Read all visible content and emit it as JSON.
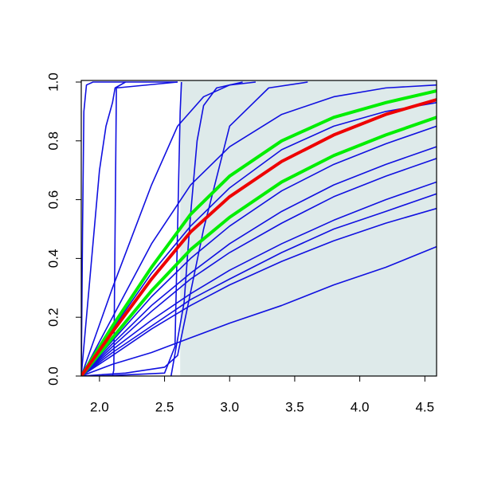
{
  "chart_data": {
    "type": "line",
    "xlim": [
      1.86,
      4.59
    ],
    "ylim": [
      0,
      1
    ],
    "xticks": [
      {
        "value": 2,
        "label": "2.0"
      },
      {
        "value": 2.5,
        "label": "2.5"
      },
      {
        "value": 3,
        "label": "3.0"
      },
      {
        "value": 3.5,
        "label": "3.5"
      },
      {
        "value": 4,
        "label": "4.0"
      },
      {
        "value": 4.5,
        "label": "4.5"
      }
    ],
    "yticks": [
      {
        "value": 0,
        "label": "0.0"
      },
      {
        "value": 0.2,
        "label": "0.2"
      },
      {
        "value": 0.4,
        "label": "0.4"
      },
      {
        "value": 0.6,
        "label": "0.6"
      },
      {
        "value": 0.8,
        "label": "0.8"
      },
      {
        "value": 1,
        "label": "1.0"
      }
    ],
    "shade": {
      "x": [
        2.62,
        4.59
      ],
      "color": "#deeaea"
    },
    "series": [
      {
        "color": "#1010e0",
        "x": [
          1.86,
          2.1,
          2.4,
          2.7,
          3.0,
          3.4,
          3.8,
          4.2,
          4.59
        ],
        "values": [
          0,
          0.2,
          0.45,
          0.65,
          0.78,
          0.89,
          0.95,
          0.98,
          0.99
        ]
      },
      {
        "color": "#1010e0",
        "x": [
          1.86,
          2.1,
          2.4,
          2.7,
          3.0,
          3.4,
          3.8,
          4.2,
          4.59
        ],
        "values": [
          0,
          0.16,
          0.35,
          0.51,
          0.64,
          0.77,
          0.85,
          0.9,
          0.93
        ]
      },
      {
        "color": "#1010e0",
        "x": [
          1.86,
          2.1,
          2.4,
          2.7,
          3.0,
          3.4,
          3.8,
          4.2,
          4.59
        ],
        "values": [
          0,
          0.12,
          0.27,
          0.4,
          0.51,
          0.63,
          0.72,
          0.79,
          0.85
        ]
      },
      {
        "color": "#1010e0",
        "x": [
          1.86,
          2.1,
          2.4,
          2.7,
          3.0,
          3.4,
          3.8,
          4.2,
          4.59
        ],
        "values": [
          0,
          0.11,
          0.24,
          0.35,
          0.45,
          0.56,
          0.65,
          0.72,
          0.78
        ]
      },
      {
        "color": "#1010e0",
        "x": [
          1.86,
          2.1,
          2.4,
          2.7,
          3.0,
          3.4,
          3.8,
          4.2,
          4.59
        ],
        "values": [
          0,
          0.1,
          0.22,
          0.33,
          0.42,
          0.52,
          0.61,
          0.68,
          0.74
        ]
      },
      {
        "color": "#1010e0",
        "x": [
          1.86,
          2.1,
          2.4,
          2.7,
          3.0,
          3.4,
          3.8,
          4.2,
          4.59
        ],
        "values": [
          0,
          0.09,
          0.19,
          0.28,
          0.36,
          0.45,
          0.53,
          0.6,
          0.66
        ]
      },
      {
        "color": "#1010e0",
        "x": [
          1.86,
          2.1,
          2.4,
          2.7,
          3.0,
          3.4,
          3.8,
          4.2,
          4.59
        ],
        "values": [
          0,
          0.08,
          0.17,
          0.26,
          0.33,
          0.42,
          0.5,
          0.56,
          0.62
        ]
      },
      {
        "color": "#1010e0",
        "x": [
          1.86,
          2.1,
          2.4,
          2.7,
          3.0,
          3.4,
          3.8,
          4.2,
          4.59
        ],
        "values": [
          0,
          0.07,
          0.16,
          0.24,
          0.31,
          0.39,
          0.46,
          0.52,
          0.57
        ]
      },
      {
        "color": "#1010e0",
        "x": [
          1.86,
          2.1,
          2.4,
          2.7,
          3.0,
          3.4,
          3.8,
          4.2,
          4.59
        ],
        "values": [
          0,
          0.04,
          0.08,
          0.13,
          0.18,
          0.24,
          0.31,
          0.37,
          0.44
        ]
      },
      {
        "color": "#1010e0",
        "x": [
          1.86,
          1.87,
          1.88,
          1.9,
          1.95,
          2.6
        ],
        "values": [
          0,
          0.5,
          0.9,
          0.99,
          1,
          1
        ]
      },
      {
        "color": "#1010e0",
        "x": [
          1.86,
          1.9,
          1.95,
          2.0,
          2.05,
          2.1,
          2.12,
          2.2
        ],
        "values": [
          0,
          0.2,
          0.45,
          0.7,
          0.85,
          0.93,
          0.98,
          1
        ]
      },
      {
        "color": "#1010e0",
        "x": [
          2.1,
          2.11,
          2.12,
          2.13,
          2.6
        ],
        "values": [
          0,
          0.02,
          0.5,
          0.98,
          1
        ]
      },
      {
        "color": "#1010e0",
        "x": [
          2.0,
          2.5,
          2.58,
          2.6,
          2.62,
          2.63
        ],
        "values": [
          0,
          0.01,
          0.1,
          0.5,
          0.9,
          1
        ]
      },
      {
        "color": "#1010e0",
        "x": [
          2.55,
          2.65,
          2.7,
          2.75,
          2.8,
          2.9,
          3.1
        ],
        "values": [
          0,
          0.25,
          0.55,
          0.8,
          0.92,
          0.98,
          1
        ]
      },
      {
        "color": "#1010e0",
        "x": [
          1.86,
          2.2,
          2.5,
          2.6,
          2.8,
          3.0,
          3.3,
          3.6
        ],
        "values": [
          0,
          0.01,
          0.03,
          0.07,
          0.5,
          0.85,
          0.98,
          1
        ]
      },
      {
        "color": "#1010e0",
        "x": [
          1.86,
          2.1,
          2.4,
          2.6,
          2.8,
          3.0,
          3.2
        ],
        "values": [
          0,
          0.3,
          0.65,
          0.85,
          0.95,
          0.99,
          1
        ]
      },
      {
        "color": "#00ee00",
        "width": 4,
        "x": [
          1.86,
          2.1,
          2.4,
          2.7,
          3.0,
          3.4,
          3.8,
          4.2,
          4.59
        ],
        "values": [
          0,
          0.17,
          0.37,
          0.55,
          0.68,
          0.8,
          0.88,
          0.93,
          0.97
        ]
      },
      {
        "color": "#00ee00",
        "width": 4,
        "x": [
          1.86,
          2.1,
          2.4,
          2.7,
          3.0,
          3.4,
          3.8,
          4.2,
          4.59
        ],
        "values": [
          0,
          0.13,
          0.29,
          0.43,
          0.54,
          0.66,
          0.75,
          0.82,
          0.88
        ]
      },
      {
        "color": "#ee0000",
        "width": 4,
        "x": [
          1.86,
          2.1,
          2.4,
          2.7,
          3.0,
          3.4,
          3.8,
          4.2,
          4.59
        ],
        "values": [
          0,
          0.15,
          0.33,
          0.49,
          0.61,
          0.73,
          0.82,
          0.89,
          0.94
        ]
      }
    ]
  }
}
